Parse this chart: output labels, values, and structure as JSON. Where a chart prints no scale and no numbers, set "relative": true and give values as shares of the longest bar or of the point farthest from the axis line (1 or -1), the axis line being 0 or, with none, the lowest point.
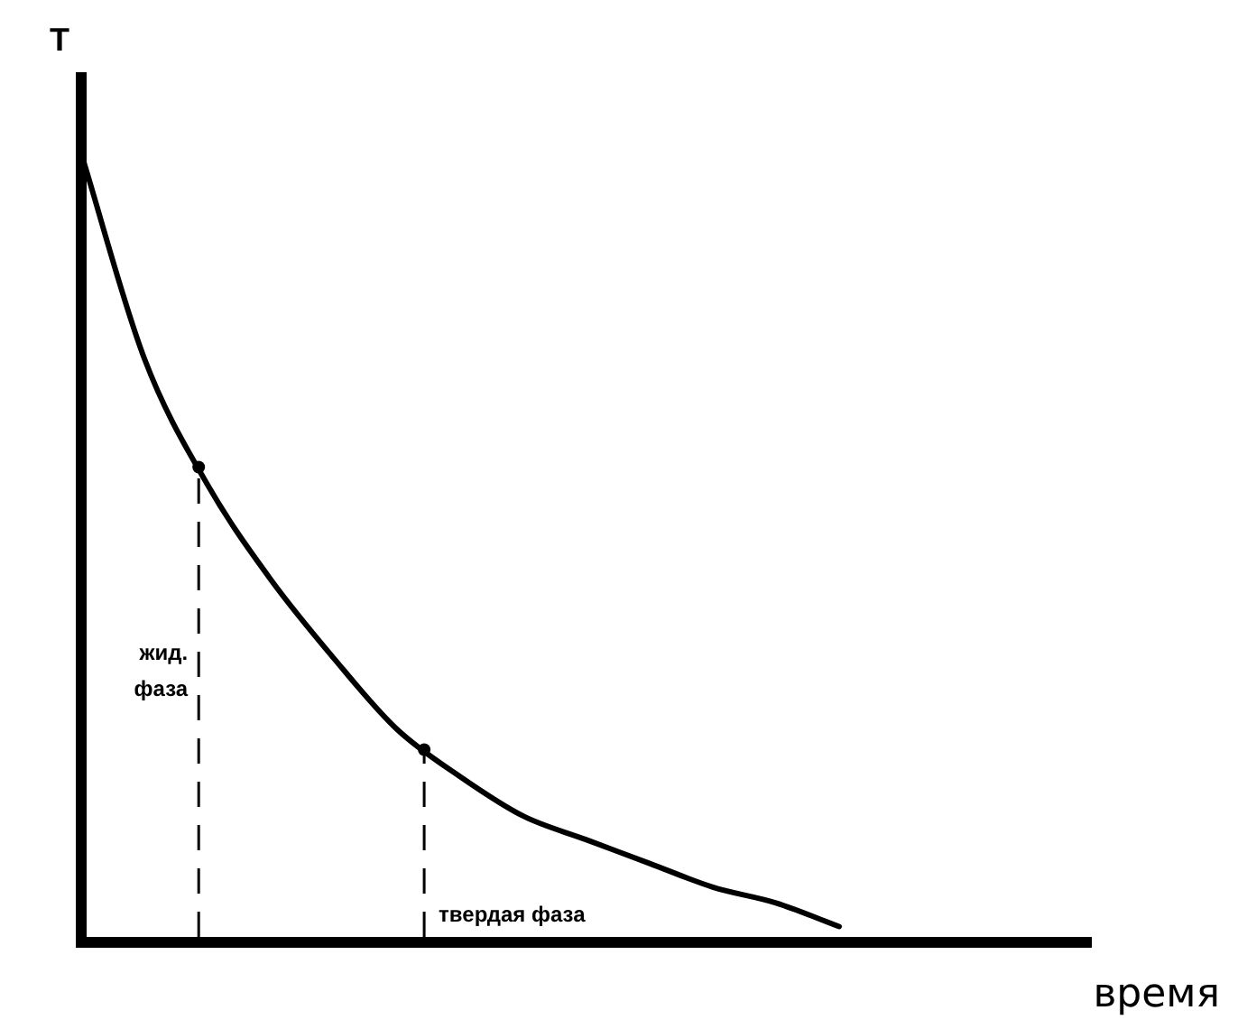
{
  "chart_data": {
    "type": "line",
    "relative": true,
    "xlabel": "время",
    "ylabel": "T",
    "color": "#000000",
    "marker": "none",
    "categories": [
      null,
      null,
      null,
      null,
      null,
      null,
      null,
      null,
      null,
      null,
      null,
      null,
      null,
      null,
      null,
      null,
      null
    ],
    "values": [
      1,
      0.74,
      0.58,
      0.46,
      0.36,
      0.27,
      0.21,
      0.16,
      0.13,
      0.1,
      0.07,
      0.05,
      0.02,
      null,
      null,
      null,
      null
    ],
    "annotations": [
      "жид. фаза",
      "твердая фаза"
    ]
  }
}
